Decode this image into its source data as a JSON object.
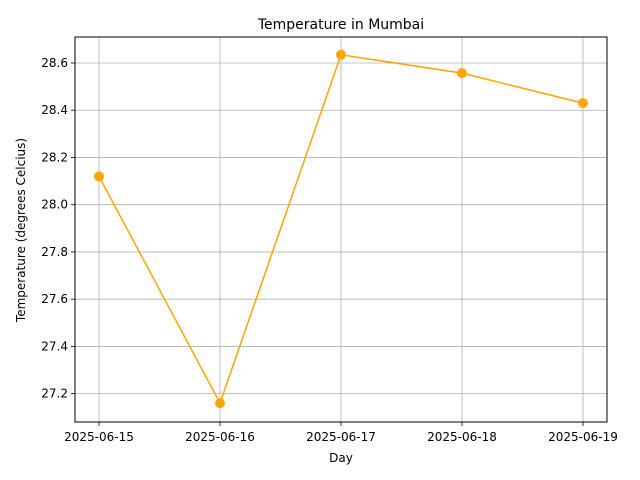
{
  "chart_data": {
    "type": "line",
    "title": "Temperature in Mumbai",
    "xlabel": "Day",
    "ylabel": "Temperature (degrees Celcius)",
    "x": [
      "2025-06-15",
      "2025-06-16",
      "2025-06-17",
      "2025-06-18",
      "2025-06-19"
    ],
    "series": [
      {
        "values": [
          28.12,
          27.16,
          28.635,
          28.557,
          28.43
        ],
        "color": "#ffa500",
        "marker": "circle"
      }
    ],
    "ylim": [
      27.08,
      28.71
    ],
    "yticks": [
      27.2,
      27.4,
      27.6,
      27.8,
      28.0,
      28.2,
      28.4,
      28.6
    ],
    "ytick_labels": [
      "27.2",
      "27.4",
      "27.6",
      "27.8",
      "28.0",
      "28.2",
      "28.4",
      "28.6"
    ],
    "grid": true,
    "legend": false
  }
}
